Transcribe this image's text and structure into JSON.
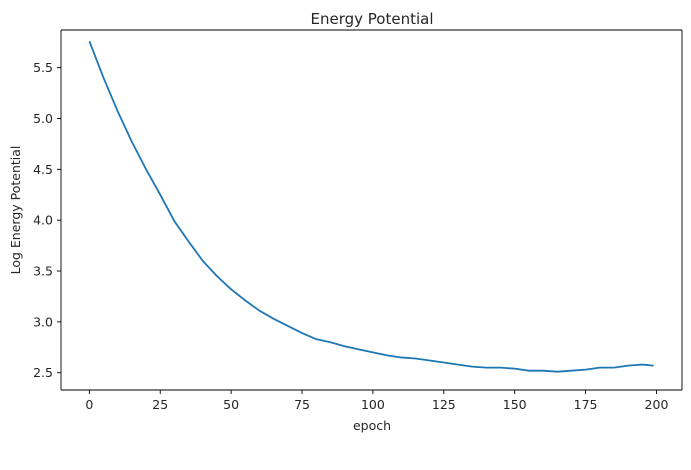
{
  "chart_data": {
    "type": "line",
    "title": "Energy Potential",
    "xlabel": "epoch",
    "ylabel": "Log Energy Potential",
    "xlim": [
      -10,
      209
    ],
    "ylim": [
      2.33,
      5.87
    ],
    "xticks": [
      0,
      25,
      50,
      75,
      100,
      125,
      150,
      175,
      200
    ],
    "yticks": [
      2.5,
      3.0,
      3.5,
      4.0,
      4.5,
      5.0,
      5.5
    ],
    "ytick_labels": [
      "2.5",
      "3.0",
      "3.5",
      "4.0",
      "4.5",
      "5.0",
      "5.5"
    ],
    "grid": false,
    "line_color": "#1f77b4",
    "series": [
      {
        "x": [
          0,
          5,
          10,
          15,
          20,
          25,
          30,
          35,
          40,
          45,
          50,
          55,
          60,
          65,
          70,
          75,
          80,
          85,
          90,
          95,
          100,
          105,
          110,
          115,
          120,
          125,
          130,
          135,
          140,
          145,
          150,
          155,
          160,
          165,
          170,
          175,
          180,
          185,
          190,
          195,
          199
        ],
        "values": [
          5.76,
          5.4,
          5.07,
          4.77,
          4.5,
          4.25,
          3.99,
          3.79,
          3.6,
          3.45,
          3.32,
          3.21,
          3.11,
          3.03,
          2.96,
          2.89,
          2.83,
          2.8,
          2.76,
          2.73,
          2.7,
          2.67,
          2.65,
          2.64,
          2.62,
          2.6,
          2.58,
          2.56,
          2.55,
          2.55,
          2.54,
          2.52,
          2.52,
          2.51,
          2.52,
          2.53,
          2.55,
          2.55,
          2.57,
          2.58,
          2.57
        ]
      }
    ]
  }
}
